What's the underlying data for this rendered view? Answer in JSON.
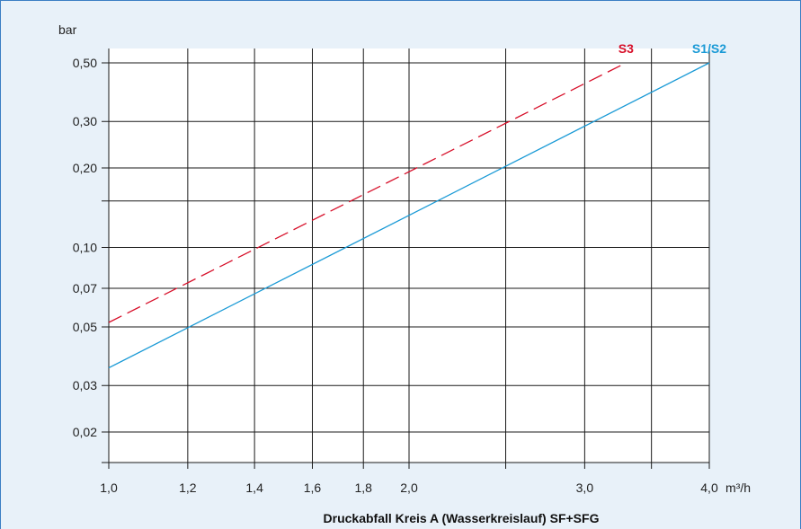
{
  "chart_data": {
    "type": "line",
    "title": "Druckabfall Kreis A (Wasserkreislauf) SF+SFG",
    "ylabel": "bar",
    "xlabel": "m³/h",
    "x_scale": "log",
    "y_scale": "log",
    "xlim": [
      1.0,
      4.0
    ],
    "ylim": [
      0.015,
      0.5
    ],
    "grid": true,
    "x_grid": [
      1.0,
      1.2,
      1.4,
      1.6,
      1.8,
      2.0,
      2.5,
      3.0,
      3.5,
      4.0
    ],
    "y_grid": [
      0.02,
      0.03,
      0.05,
      0.07,
      0.1,
      0.15,
      0.2,
      0.3,
      0.5
    ],
    "x_ticks": [
      {
        "value": 1.0,
        "label": "1,0"
      },
      {
        "value": 1.2,
        "label": "1,2"
      },
      {
        "value": 1.4,
        "label": "1,4"
      },
      {
        "value": 1.6,
        "label": "1,6"
      },
      {
        "value": 1.8,
        "label": "1,8"
      },
      {
        "value": 2.0,
        "label": "2,0"
      },
      {
        "value": 2.5,
        "label": ""
      },
      {
        "value": 3.0,
        "label": "3,0"
      },
      {
        "value": 3.5,
        "label": ""
      },
      {
        "value": 4.0,
        "label": "4,0"
      }
    ],
    "y_ticks": [
      {
        "value": 0.02,
        "label": "0,02"
      },
      {
        "value": 0.03,
        "label": "0,03"
      },
      {
        "value": 0.05,
        "label": "0,05"
      },
      {
        "value": 0.07,
        "label": "0,07"
      },
      {
        "value": 0.1,
        "label": "0,10"
      },
      {
        "value": 0.15,
        "label": ""
      },
      {
        "value": 0.2,
        "label": "0,20"
      },
      {
        "value": 0.3,
        "label": "0,30"
      },
      {
        "value": 0.5,
        "label": "0,50"
      }
    ],
    "series": [
      {
        "name": "S3",
        "color": "#d7102a",
        "dash": "dashed",
        "x": [
          1.0,
          3.3
        ],
        "y": [
          0.052,
          0.5
        ]
      },
      {
        "name": "S1/S2",
        "color": "#1a9ad6",
        "dash": "solid",
        "x": [
          1.0,
          4.0
        ],
        "y": [
          0.035,
          0.5
        ]
      }
    ]
  }
}
